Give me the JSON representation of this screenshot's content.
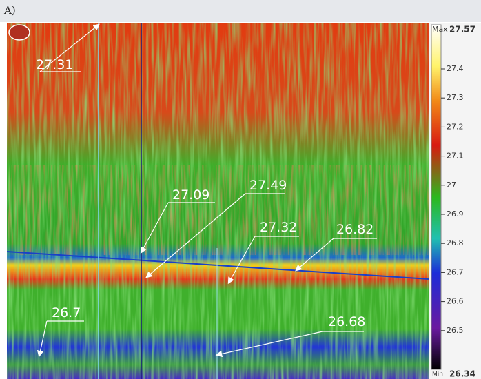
{
  "panel_label": "A)",
  "scale": {
    "max_label": "Max",
    "max": 27.57,
    "min_label": "Min",
    "min": 26.34,
    "ticks": [
      27.4,
      27.3,
      27.2,
      27.1,
      27,
      26.9,
      26.8,
      26.7,
      26.6,
      26.5
    ]
  },
  "annotations": [
    27.31,
    27.09,
    27.49,
    27.32,
    26.82,
    26.7,
    26.68
  ]
}
